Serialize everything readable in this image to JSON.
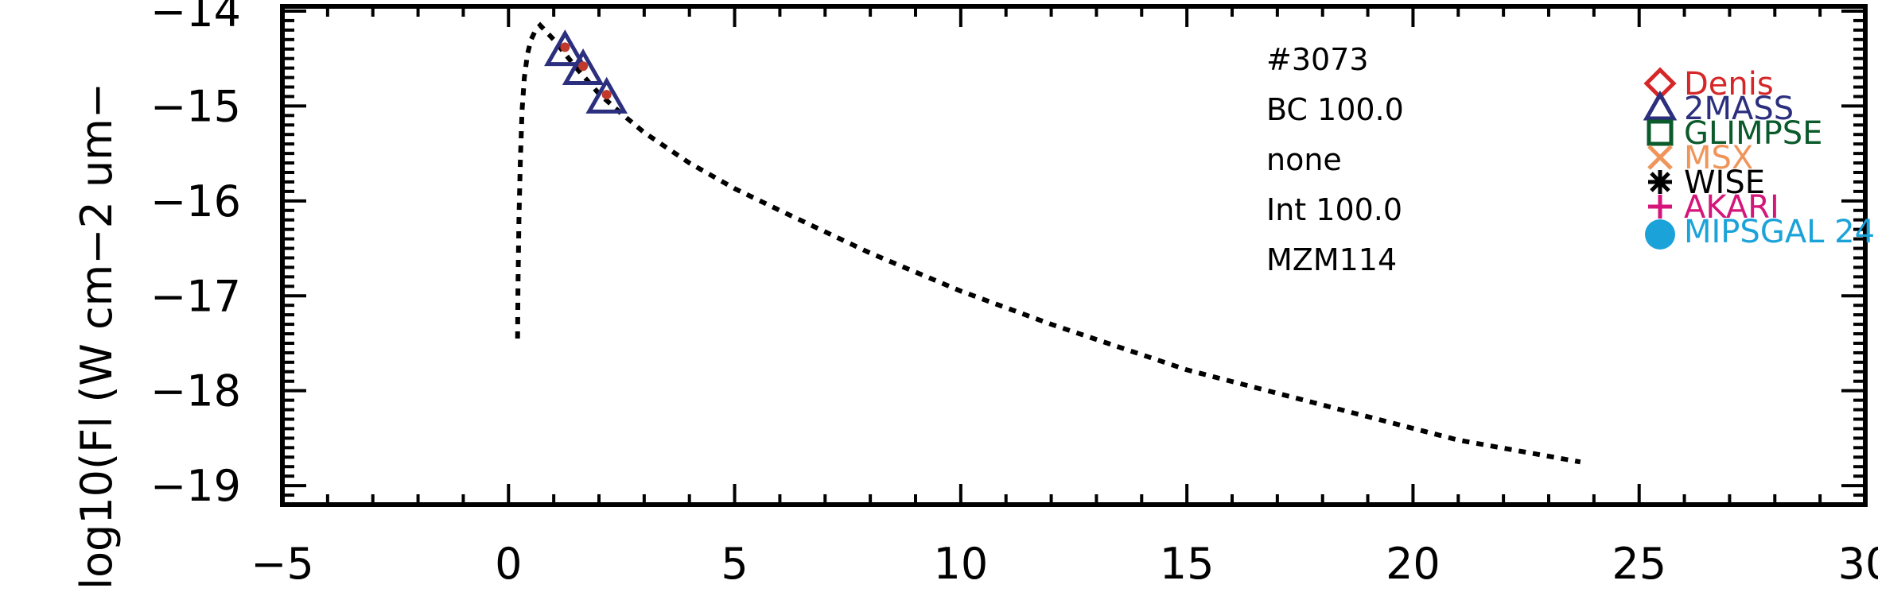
{
  "chart_data": {
    "type": "scatter",
    "ylabel": "log10(Fl (W cm−2 um−",
    "xlim": [
      -5,
      30
    ],
    "ylim": [
      -19.2,
      -13.95
    ],
    "x_ticks": [
      -5,
      0,
      5,
      10,
      15,
      20,
      25,
      30
    ],
    "x_tick_labels": [
      "−5",
      "0",
      "5",
      "10",
      "15",
      "20",
      "25",
      "30"
    ],
    "y_ticks": [
      -19,
      -18,
      -17,
      -16,
      -15,
      -14
    ],
    "y_tick_labels": [
      "−19",
      "−18",
      "−17",
      "−16",
      "−15",
      "−14"
    ],
    "grid": false,
    "legend_position": "top-right",
    "annotations": [
      "#3073",
      "BC 100.0",
      "none",
      "Int 100.0",
      "MZM114"
    ],
    "legend": [
      {
        "label": "Denis",
        "marker": "diamond-open",
        "color": "#d62728"
      },
      {
        "label": "2MASS",
        "marker": "triangle-open",
        "color": "#2b2f7e"
      },
      {
        "label": "GLIMPSE",
        "marker": "square-open",
        "color": "#0b5a2b"
      },
      {
        "label": "MSX",
        "marker": "x",
        "color": "#f0955a"
      },
      {
        "label": "WISE",
        "marker": "asterisk",
        "color": "#000000"
      },
      {
        "label": "AKARI",
        "marker": "plus",
        "color": "#d4157a"
      },
      {
        "label": "MIPSGAL 24",
        "marker": "circle-filled",
        "color": "#1ba3d9"
      }
    ],
    "series": [
      {
        "style": "dotted-line",
        "color": "#000000",
        "x": [
          0.2,
          0.21,
          0.23,
          0.26,
          0.3,
          0.35,
          0.42,
          0.5,
          0.6,
          0.7,
          0.8,
          1.0,
          1.2,
          1.5,
          2.0,
          2.5,
          3.0,
          4.0,
          5.0,
          6.0,
          8.0,
          10.0,
          12.0,
          15.0,
          18.0,
          21.0,
          23.7
        ],
        "y": [
          -17.45,
          -16.9,
          -16.2,
          -15.6,
          -15.05,
          -14.7,
          -14.45,
          -14.3,
          -14.2,
          -14.15,
          -14.2,
          -14.3,
          -14.42,
          -14.6,
          -14.87,
          -15.08,
          -15.28,
          -15.6,
          -15.87,
          -16.1,
          -16.55,
          -16.95,
          -17.3,
          -17.78,
          -18.15,
          -18.52,
          -18.75
        ]
      },
      {
        "name": "2MASS",
        "style": "triangle-open",
        "color": "#2b2f7e",
        "x": [
          1.25,
          1.65,
          2.17
        ],
        "y": [
          -14.42,
          -14.62,
          -14.92
        ]
      },
      {
        "style": "small-dot",
        "color": "#c0392b",
        "x": [
          1.25,
          1.65,
          2.17
        ],
        "y": [
          -14.38,
          -14.58,
          -14.88
        ]
      }
    ]
  }
}
